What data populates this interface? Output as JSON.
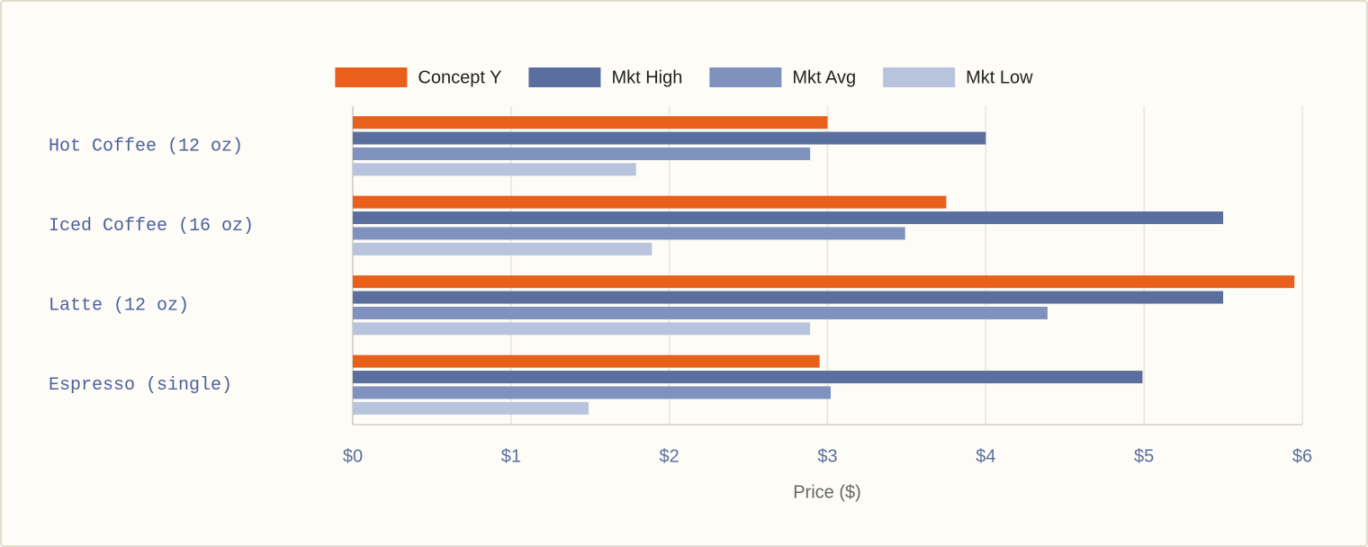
{
  "chart_data": {
    "type": "hbar",
    "x_label": "Price ($)",
    "categories": [
      "Hot Coffee (12 oz)",
      "Iced Coffee (16 oz)",
      "Latte (12 oz)",
      "Espresso (single)"
    ],
    "series": [
      {
        "name": "Concept Y",
        "color": "#e8601c",
        "values": [
          3.0,
          3.75,
          5.95,
          2.95
        ]
      },
      {
        "name": "Mkt High",
        "color": "#5a6f9e",
        "values": [
          4.0,
          5.5,
          5.5,
          4.99
        ]
      },
      {
        "name": "Mkt Avg",
        "color": "#7f91bd",
        "values": [
          2.89,
          3.49,
          4.39,
          3.02
        ]
      },
      {
        "name": "Mkt Low",
        "color": "#b8c4de",
        "values": [
          1.79,
          1.89,
          2.89,
          1.49
        ]
      }
    ],
    "xlim": [
      0,
      6
    ],
    "xticks": [
      {
        "value": 0,
        "label": "$0"
      },
      {
        "value": 1,
        "label": "$1"
      },
      {
        "value": 2,
        "label": "$2"
      },
      {
        "value": 3,
        "label": "$3"
      },
      {
        "value": 4,
        "label": "$4"
      },
      {
        "value": 5,
        "label": "$5"
      },
      {
        "value": 6,
        "label": "$6"
      }
    ],
    "grid": true,
    "legend": "top"
  }
}
